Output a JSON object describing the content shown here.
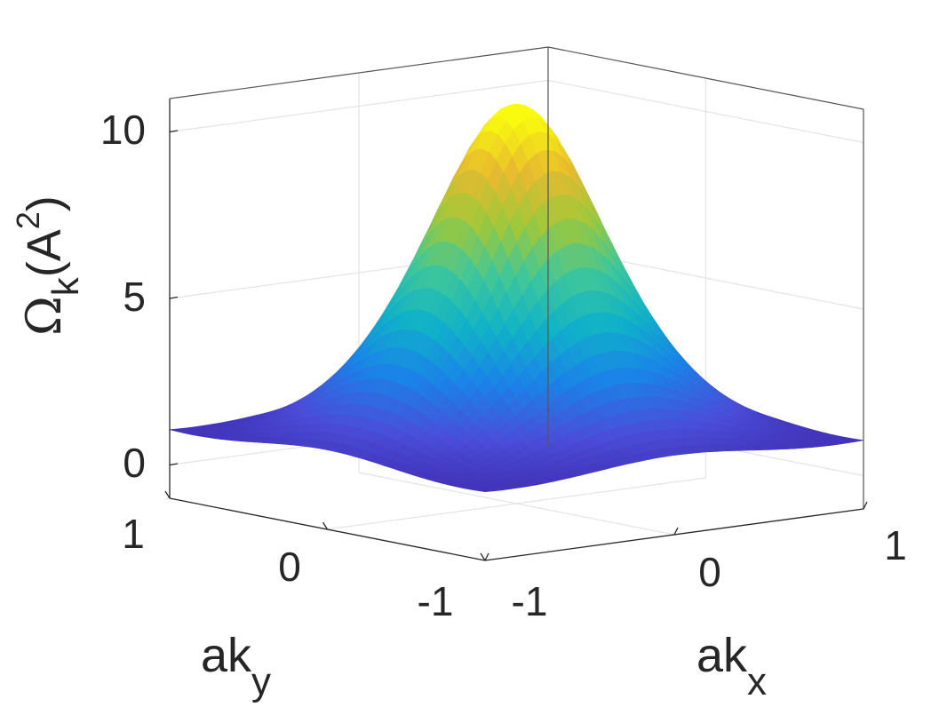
{
  "chart_data": {
    "type": "surface",
    "zlabel": {
      "main": "Ω",
      "sub": "k",
      "paren": "(A",
      "sup": "2",
      "close": ")"
    },
    "xlabel": {
      "main": "ak",
      "sub": "x"
    },
    "ylabel": {
      "main": "ak",
      "sub": "y"
    },
    "xlim": [
      -1,
      1
    ],
    "ylim": [
      -1,
      1
    ],
    "zlim": [
      -1,
      11
    ],
    "z_ticks": [
      "0",
      "5",
      "10"
    ],
    "x_ticks": [
      "-1",
      "0",
      "1"
    ],
    "y_ticks": [
      "-1",
      "0",
      "1"
    ],
    "grid": true,
    "colormap": "parula",
    "colors": [
      "#3e26a8",
      "#4a4dd9",
      "#1a83e8",
      "#10b2c8",
      "#3fc79a",
      "#9ec83a",
      "#e8ba2f",
      "#f9fa0e"
    ],
    "surface_samples": {
      "corner_x1_y1": 1.0,
      "corner_xm1_y1": 0.9,
      "corner_x1_ym1": 0.6,
      "corner_xm1_ym1": 0.9,
      "peak_x0_y0": 10.6
    }
  }
}
